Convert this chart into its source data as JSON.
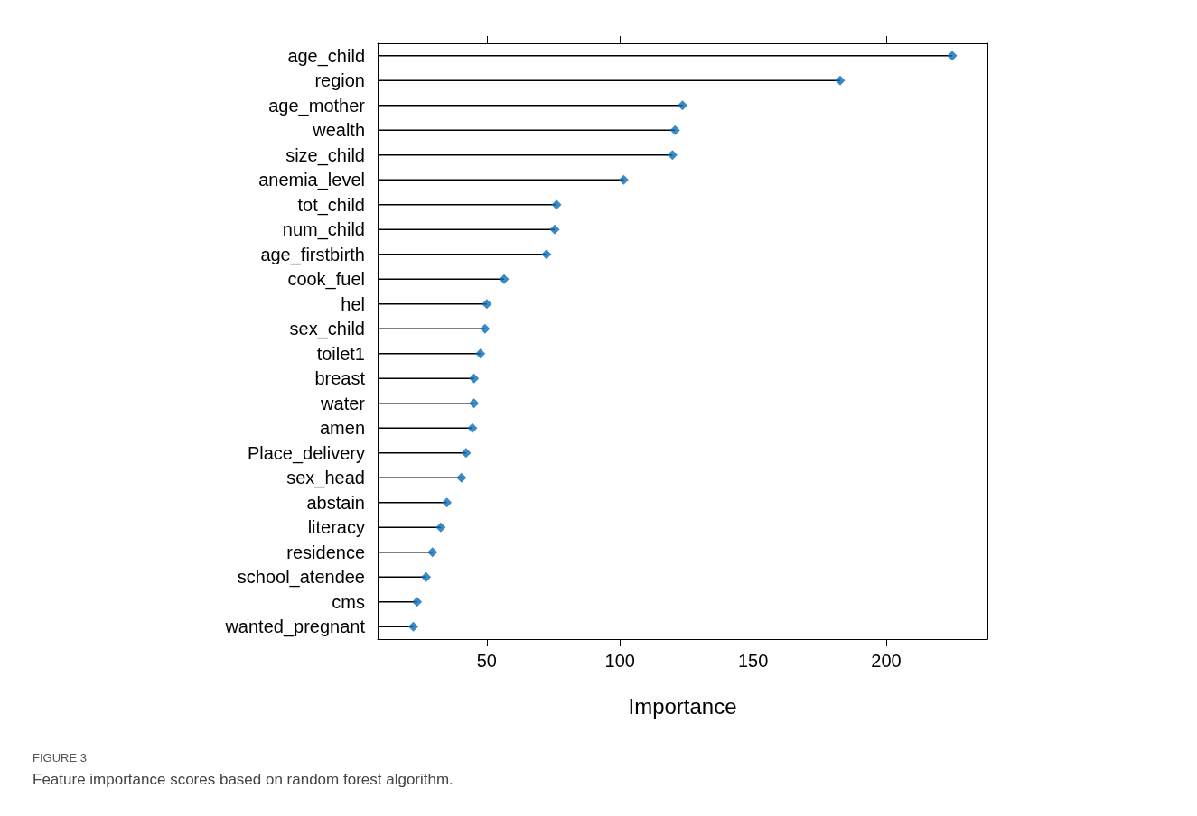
{
  "chart_data": {
    "type": "lollipop",
    "orientation": "horizontal",
    "xlabel": "Importance",
    "annotations": [
      "FIGURE 3",
      "Feature importance scores based on random forest algorithm."
    ],
    "categories": [
      "age_child",
      "region",
      "age_mother",
      "wealth",
      "size_child",
      "anemia_level",
      "tot_child",
      "num_child",
      "age_firstbirth",
      "cook_fuel",
      "hel",
      "sex_child",
      "toilet1",
      "breast",
      "water",
      "amen",
      "Place_delivery",
      "sex_head",
      "abstain",
      "literacy",
      "residence",
      "school_atendee",
      "cms",
      "wanted_pregnant"
    ],
    "values": [
      224.8,
      182.7,
      123.5,
      120.7,
      119.7,
      101.4,
      76.2,
      75.5,
      72.4,
      56.5,
      50,
      49.3,
      47.6,
      45.2,
      45.2,
      44.6,
      42.2,
      40.5,
      35,
      32.7,
      29.6,
      27.2,
      23.8,
      22.4
    ],
    "color": "#0a6db5",
    "marker": "diamond",
    "grid": false,
    "xlim": [
      9,
      238
    ],
    "xticks": [
      50,
      100,
      150,
      200
    ]
  }
}
